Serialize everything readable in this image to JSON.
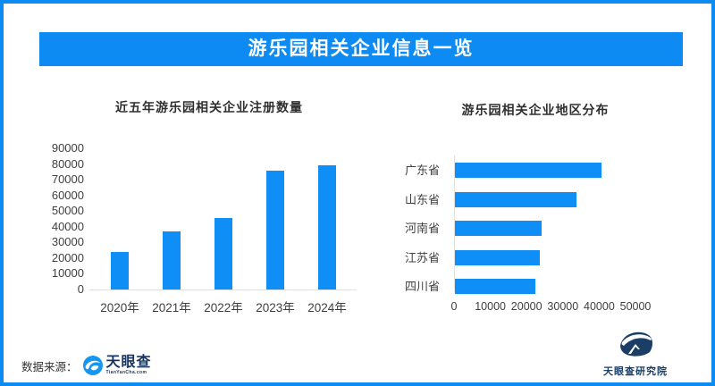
{
  "colors": {
    "accent_blue": "#0d8bf2",
    "bar_blue": "#0f8ff5",
    "logo_navy": "#17355e",
    "text_dark": "#333333"
  },
  "header": {
    "title": "游乐园相关企业信息一览"
  },
  "chart_data": [
    {
      "type": "bar",
      "orientation": "vertical",
      "title": "近五年游乐园相关企业注册数量",
      "categories": [
        "2020年",
        "2021年",
        "2022年",
        "2023年",
        "2024年"
      ],
      "values": [
        24000,
        37000,
        45500,
        75500,
        79000
      ],
      "ylim": [
        0,
        90000
      ],
      "yticks": [
        0,
        10000,
        20000,
        30000,
        40000,
        50000,
        60000,
        70000,
        80000,
        90000
      ],
      "bar_color": "#0f8ff5",
      "grid": false,
      "legend": "none"
    },
    {
      "type": "bar",
      "orientation": "horizontal",
      "title": "游乐园相关企业地区分布",
      "categories": [
        "广东省",
        "山东省",
        "河南省",
        "江苏省",
        "四川省"
      ],
      "values": [
        40500,
        33500,
        24000,
        23300,
        22200
      ],
      "xlim": [
        0,
        50000
      ],
      "xticks": [
        0,
        10000,
        20000,
        30000,
        40000,
        50000
      ],
      "bar_color": "#0f8ff5",
      "grid": false,
      "legend": "none"
    }
  ],
  "footer": {
    "source_label": "数据来源：",
    "brand_name": "天眼查",
    "brand_domain": "TianYanCha.com",
    "institute_name": "天眼查研究院"
  }
}
